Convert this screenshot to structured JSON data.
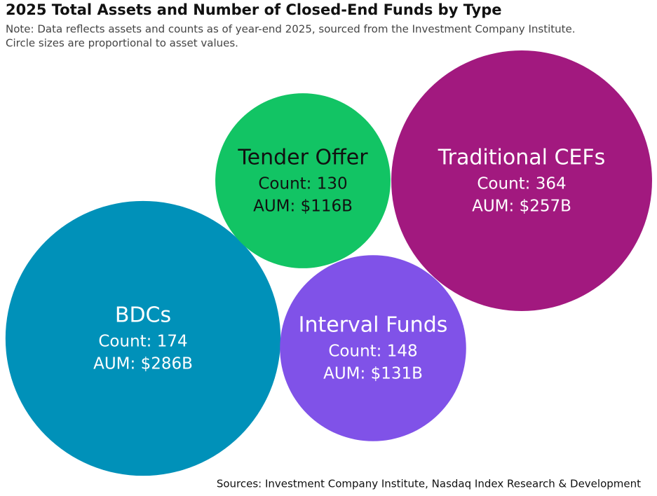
{
  "chart_data": {
    "type": "bubble",
    "title": "2025 Total Assets and Number of Closed-End Funds by Type",
    "subtitle": "Note: Data reflects assets and counts as of year-end 2025, sourced from the Investment Company Institute.",
    "subtitle_line2": "Circle sizes are proportional to asset values.",
    "source": "Sources: Investment Company Institute, Nasdaq Index Research & Development",
    "categories": [
      "BDCs",
      "Tender Offer",
      "Traditional CEFs",
      "Interval Funds"
    ],
    "values": [
      286,
      116,
      257,
      131
    ],
    "value_labels": [
      "AUM: $286B",
      "AUM: $116B",
      "AUM: $257B",
      "AUM: $131B"
    ],
    "counts": [
      174,
      130,
      364,
      148
    ],
    "count_labels": [
      "Count: 174",
      "Count: 130",
      "Count: 364",
      "Count: 148"
    ],
    "colors": [
      "#0091b9",
      "#12c464",
      "#a2197f",
      "#8052e8"
    ],
    "label_colors": [
      "#ffffff",
      "#111111",
      "#ffffff",
      "#ffffff"
    ]
  }
}
